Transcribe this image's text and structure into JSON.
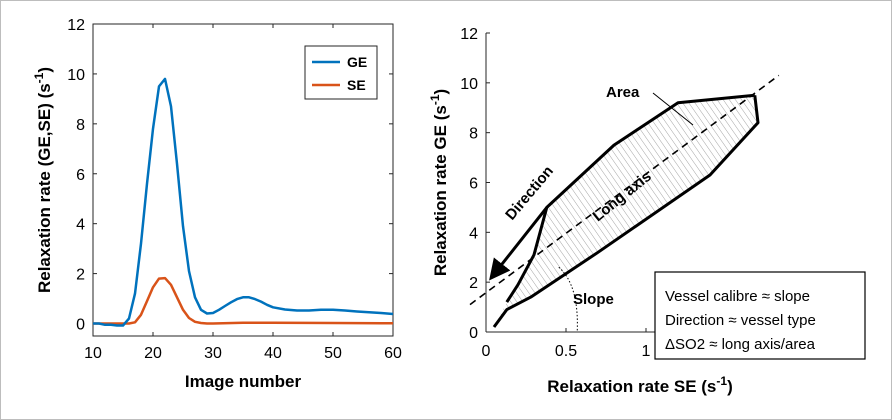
{
  "chart_data": [
    {
      "type": "line",
      "xlabel": "Image number",
      "ylabel": "Relaxation rate (GE,SE) (s",
      "ylabel_sup": "-1",
      "ylabel_tail": ")",
      "xlim": [
        10,
        60
      ],
      "ylim": [
        -0.5,
        12
      ],
      "xticks": [
        10,
        20,
        30,
        40,
        50,
        60
      ],
      "yticks": [
        0,
        2,
        4,
        6,
        8,
        10,
        12
      ],
      "legend_position": "top-right",
      "series": [
        {
          "name": "GE",
          "color": "#0072BD",
          "x": [
            10,
            11,
            12,
            13,
            14,
            15,
            16,
            17,
            18,
            19,
            20,
            21,
            22,
            23,
            24,
            25,
            26,
            27,
            28,
            29,
            30,
            31,
            32,
            33,
            34,
            35,
            36,
            37,
            38,
            39,
            40,
            42,
            44,
            46,
            48,
            50,
            52,
            54,
            56,
            58,
            60
          ],
          "y": [
            0,
            0,
            -0.05,
            -0.05,
            -0.08,
            -0.08,
            0.2,
            1.2,
            3.2,
            5.6,
            7.8,
            9.5,
            9.8,
            8.7,
            6.4,
            3.9,
            2.1,
            1.05,
            0.55,
            0.4,
            0.42,
            0.55,
            0.7,
            0.85,
            0.98,
            1.05,
            1.05,
            0.98,
            0.88,
            0.75,
            0.65,
            0.56,
            0.52,
            0.52,
            0.55,
            0.55,
            0.52,
            0.48,
            0.45,
            0.42,
            0.38
          ]
        },
        {
          "name": "SE",
          "color": "#D95319",
          "x": [
            10,
            12,
            14,
            15,
            16,
            17,
            18,
            19,
            20,
            21,
            22,
            23,
            24,
            25,
            26,
            27,
            28,
            29,
            30,
            35,
            40,
            50,
            60
          ],
          "y": [
            0,
            0,
            0,
            0,
            0,
            0.05,
            0.35,
            0.9,
            1.45,
            1.8,
            1.82,
            1.55,
            1.05,
            0.55,
            0.22,
            0.07,
            0.02,
            0,
            0,
            0.03,
            0.03,
            0.02,
            0.01
          ]
        }
      ]
    },
    {
      "type": "scatter",
      "xlabel": "Relaxation rate SE (s",
      "xlabel_sup": "-1",
      "xlabel_tail": ")",
      "ylabel": "Relaxation rate GE (s",
      "ylabel_sup": "-1",
      "ylabel_tail": ")",
      "xlim": [
        0,
        2
      ],
      "ylim": [
        0,
        12
      ],
      "xticks": [
        0,
        0.5,
        1
      ],
      "yticks": [
        0,
        2,
        4,
        6,
        8,
        10,
        12
      ],
      "loop": {
        "upper": [
          [
            0.13,
            1.2
          ],
          [
            0.2,
            1.9
          ],
          [
            0.3,
            3.1
          ],
          [
            0.38,
            5.0
          ],
          [
            0.8,
            7.5
          ],
          [
            1.2,
            9.2
          ],
          [
            1.68,
            9.5
          ]
        ],
        "lower": [
          [
            1.68,
            9.5
          ],
          [
            1.7,
            8.4
          ],
          [
            1.4,
            6.3
          ],
          [
            0.7,
            3.2
          ],
          [
            0.28,
            1.4
          ],
          [
            0.13,
            0.9
          ],
          [
            0.05,
            0.2
          ]
        ]
      },
      "long_axis": {
        "x0": -0.1,
        "y0": 1.1,
        "x1": 1.83,
        "y1": 10.3
      },
      "direction_arrow": {
        "from": [
          0.38,
          5.0
        ],
        "to": [
          0.06,
          2.4
        ]
      },
      "slope_arc_center": [
        0.52,
        0.0
      ],
      "annotations": {
        "area": "Area",
        "long_axis": "Long axis",
        "direction": "Direction",
        "slope": "Slope"
      },
      "notes": [
        "Vessel calibre ≈ slope",
        "Direction ≈ vessel type",
        "ΔSO2 ≈ long axis/area"
      ]
    }
  ]
}
